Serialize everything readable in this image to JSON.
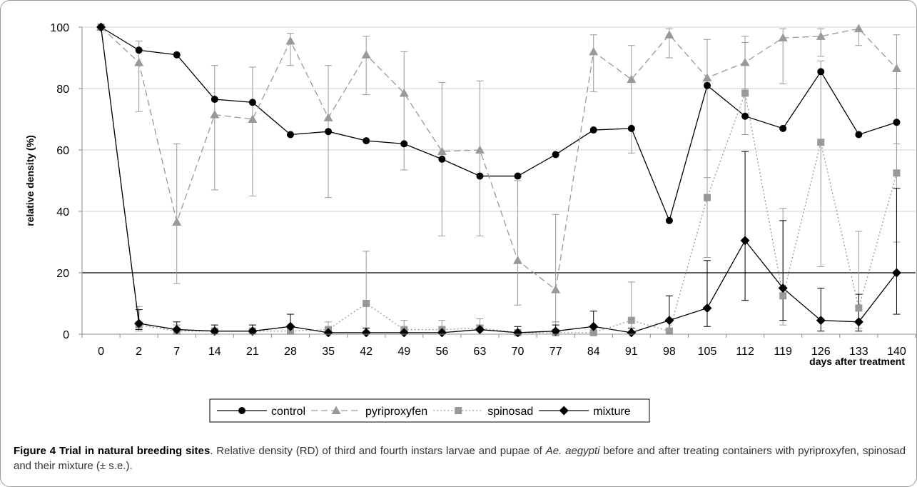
{
  "chart_data": {
    "type": "line",
    "xlabel": "days after treatment",
    "ylabel": "relative density (%)",
    "x": [
      0,
      2,
      7,
      14,
      21,
      28,
      35,
      42,
      49,
      56,
      63,
      70,
      77,
      84,
      91,
      98,
      105,
      112,
      119,
      126,
      133,
      140
    ],
    "x_tick_labels": [
      "0",
      "2",
      "7",
      "14",
      "21",
      "28",
      "35",
      "42",
      "49",
      "56",
      "63",
      "70",
      "77",
      "84",
      "91",
      "98",
      "105",
      "112",
      "119",
      "126",
      "133",
      "140"
    ],
    "y_tick_labels": [
      "0",
      "20",
      "40",
      "60",
      "80",
      "100"
    ],
    "ylim": [
      0,
      100
    ],
    "y_ticks": [
      0,
      20,
      40,
      60,
      80,
      100
    ],
    "grid": true,
    "reference_line": 20,
    "legend_position": "bottom-center",
    "series": [
      {
        "name": "control",
        "marker": "circle",
        "dash": "solid",
        "color": "#000000",
        "values": [
          100,
          92.5,
          91,
          76.5,
          75.5,
          65,
          66,
          63,
          62,
          57,
          51.5,
          51.5,
          58.5,
          66.5,
          67,
          37,
          81,
          71,
          67,
          85.5,
          65,
          69
        ],
        "err_upper": [
          null,
          null,
          null,
          null,
          null,
          null,
          null,
          null,
          null,
          null,
          null,
          null,
          null,
          null,
          null,
          null,
          null,
          null,
          null,
          null,
          null,
          null
        ],
        "err_lower": [
          null,
          null,
          null,
          null,
          null,
          null,
          null,
          null,
          null,
          null,
          null,
          null,
          null,
          null,
          null,
          null,
          null,
          null,
          null,
          null,
          null,
          null
        ]
      },
      {
        "name": "pyriproxyfen",
        "marker": "triangle",
        "dash": "dashed",
        "color": "#999999",
        "values": [
          100,
          88.5,
          36.5,
          71.5,
          70,
          95.5,
          70.5,
          91,
          78.5,
          59.5,
          60,
          24,
          14.5,
          92,
          83,
          97.5,
          83.5,
          88.5,
          96.5,
          97,
          99.5,
          86.5
        ],
        "err_upper": [
          null,
          95.5,
          62,
          87.5,
          87,
          98,
          87.5,
          97,
          92,
          82,
          82.5,
          50,
          39,
          97.5,
          94,
          99.5,
          96,
          97,
          99.5,
          99.5,
          null,
          97.5
        ],
        "err_lower": [
          null,
          72.5,
          16.5,
          47,
          45,
          87.5,
          44.5,
          78,
          53.5,
          32,
          32,
          9.5,
          4,
          79,
          59,
          90,
          51,
          80,
          81.5,
          90.5,
          94,
          62
        ]
      },
      {
        "name": "spinosad",
        "marker": "square",
        "dash": "dotted",
        "color": "#999999",
        "values": [
          100,
          3,
          1,
          1,
          1,
          1,
          1.5,
          10,
          1.5,
          1.5,
          2,
          0.5,
          0.5,
          0.5,
          4.5,
          1,
          44.5,
          78.5,
          12.5,
          62.5,
          8.5,
          52.5
        ],
        "err_upper": [
          null,
          9,
          3,
          2,
          2,
          2,
          4,
          27,
          4.5,
          4.5,
          5,
          1,
          4,
          1,
          17,
          1,
          60,
          95,
          41,
          89,
          33.5,
          80
        ],
        "err_lower": [
          null,
          1,
          0,
          0,
          0,
          0,
          0,
          2,
          0,
          0,
          0,
          0,
          0,
          0,
          0,
          0,
          25,
          65,
          3,
          22,
          2,
          30
        ]
      },
      {
        "name": "mixture",
        "marker": "diamond",
        "dash": "solid",
        "color": "#000000",
        "values": [
          100,
          3.5,
          1.5,
          1,
          1,
          2.5,
          0.5,
          0.5,
          0.5,
          0.5,
          1.5,
          0.5,
          1,
          2.5,
          0.5,
          4.5,
          8.5,
          30.5,
          15,
          4.5,
          4,
          20
        ],
        "err_upper": [
          null,
          8,
          4,
          3,
          3,
          6.5,
          1.5,
          2,
          1.5,
          1.5,
          3,
          2.5,
          3,
          7.5,
          2,
          12.5,
          24,
          59.5,
          37,
          15,
          13,
          47.5
        ],
        "err_lower": [
          null,
          1.5,
          0,
          0,
          0,
          0,
          0,
          0,
          0,
          0,
          0,
          0,
          0,
          0,
          0,
          1,
          2.5,
          11,
          4.5,
          1,
          1,
          6.5
        ]
      }
    ]
  },
  "caption": {
    "label": "Figure 4 Trial in natural breeding sites",
    "text_1": ". Relative density (RD) of third and fourth instars larvae and pupae of ",
    "species": "Ae. aegypti",
    "text_2": " before and after treating containers with pyriproxyfen, spinosad and their mixture (± s.e.)."
  }
}
